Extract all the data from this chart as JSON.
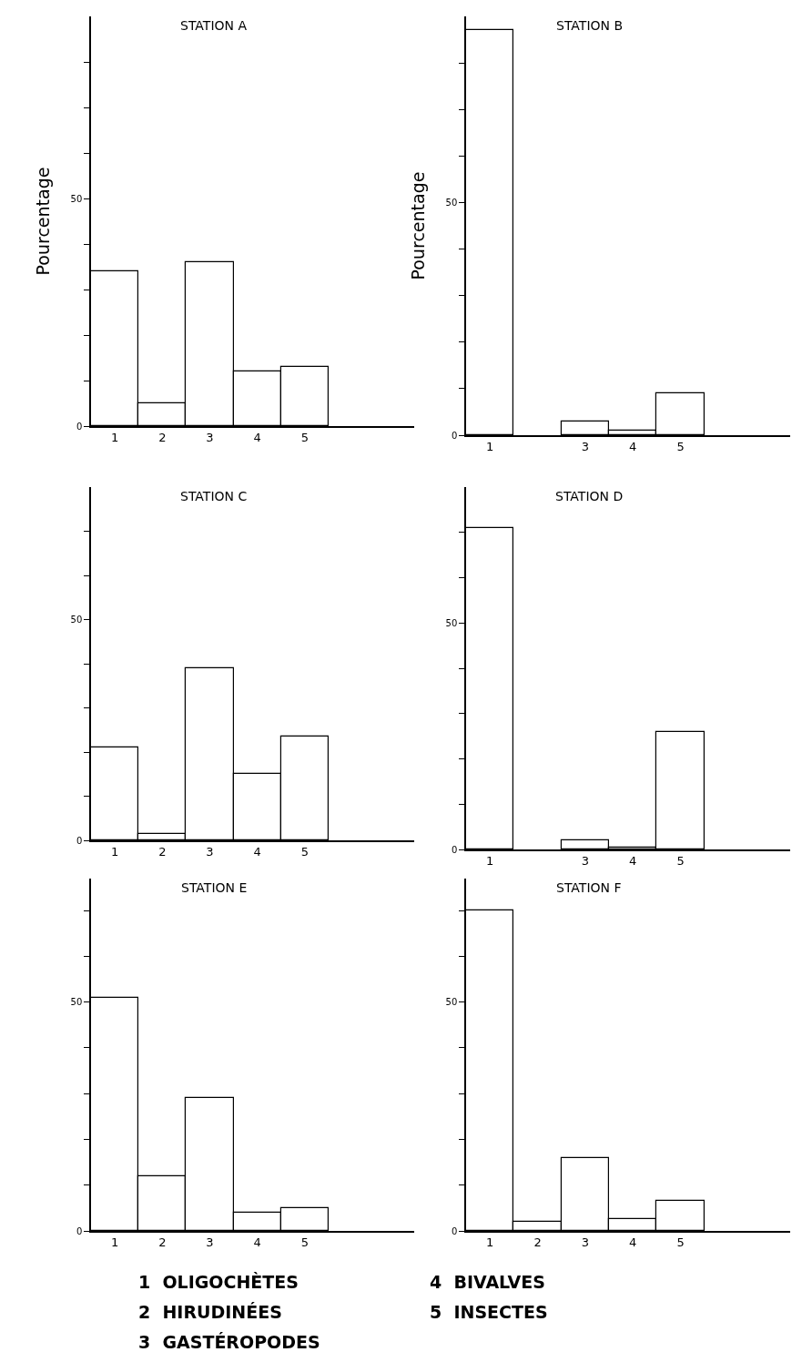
{
  "chart_data": [
    {
      "type": "bar",
      "title": "STATION A",
      "ylabel": "Pourcentage",
      "categories": [
        "1",
        "2",
        "3",
        "4",
        "5"
      ],
      "values": [
        34,
        5,
        36,
        12,
        13
      ],
      "color": "#ffffff",
      "ylim": [
        0,
        90
      ],
      "yticks": [
        0,
        {
          "value": 10,
          "label": null
        },
        {
          "value": 20,
          "label": null
        },
        {
          "value": 30,
          "label": null
        },
        {
          "value": 40,
          "label": null
        },
        50,
        {
          "value": 60,
          "label": null
        },
        {
          "value": 70,
          "label": null
        },
        {
          "value": 80,
          "label": null
        }
      ]
    },
    {
      "type": "bar",
      "title": "STATION B",
      "ylabel": "Pourcentage",
      "categories": [
        "1",
        null,
        "3",
        "4",
        "5"
      ],
      "values": [
        87,
        null,
        3,
        1,
        9
      ],
      "color": "#ffffff",
      "ylim": [
        0,
        90
      ],
      "yticks": [
        0,
        {
          "value": 10,
          "label": null
        },
        {
          "value": 20,
          "label": null
        },
        {
          "value": 30,
          "label": null
        },
        {
          "value": 40,
          "label": null
        },
        50,
        {
          "value": 60,
          "label": null
        },
        {
          "value": 70,
          "label": null
        },
        {
          "value": 80,
          "label": null
        }
      ]
    },
    {
      "type": "bar",
      "title": "STATION C",
      "categories": [
        "1",
        "2",
        "3",
        "4",
        "5"
      ],
      "values": [
        21,
        1.5,
        39,
        15,
        23.5
      ],
      "color": "#ffffff",
      "ylim": [
        0,
        80
      ],
      "yticks": [
        0,
        {
          "value": 10,
          "label": null
        },
        {
          "value": 20,
          "label": null
        },
        {
          "value": 30,
          "label": null
        },
        {
          "value": 40,
          "label": null
        },
        50,
        {
          "value": 60,
          "label": null
        },
        {
          "value": 70,
          "label": null
        }
      ]
    },
    {
      "type": "bar",
      "title": "STATION D",
      "categories": [
        "1",
        null,
        "3",
        "4",
        "5"
      ],
      "values": [
        71,
        null,
        2,
        0.5,
        26
      ],
      "color": "#ffffff",
      "ylim": [
        0,
        80
      ],
      "yticks": [
        0,
        {
          "value": 10,
          "label": null
        },
        {
          "value": 20,
          "label": null
        },
        {
          "value": 30,
          "label": null
        },
        {
          "value": 40,
          "label": null
        },
        50,
        {
          "value": 60,
          "label": null
        },
        {
          "value": 70,
          "label": null
        }
      ]
    },
    {
      "type": "bar",
      "title": "STATION E",
      "categories": [
        "1",
        "2",
        "3",
        "4",
        "5"
      ],
      "values": [
        51,
        12,
        29,
        4,
        5
      ],
      "color": "#ffffff",
      "ylim": [
        0,
        77
      ],
      "yticks": [
        0,
        {
          "value": 10,
          "label": null
        },
        {
          "value": 20,
          "label": null
        },
        {
          "value": 30,
          "label": null
        },
        {
          "value": 40,
          "label": null
        },
        50,
        {
          "value": 60,
          "label": null
        },
        {
          "value": 70,
          "label": null
        }
      ]
    },
    {
      "type": "bar",
      "title": "STATION F",
      "categories": [
        "1",
        "2",
        "3",
        "4",
        "5"
      ],
      "values": [
        70,
        2,
        16,
        2.5,
        6.5
      ],
      "color": "#ffffff",
      "ylim": [
        0,
        77
      ],
      "yticks": [
        0,
        {
          "value": 10,
          "label": null
        },
        {
          "value": 20,
          "label": null
        },
        {
          "value": 30,
          "label": null
        },
        {
          "value": 40,
          "label": null
        },
        50,
        {
          "value": 60,
          "label": null
        },
        {
          "value": 70,
          "label": null
        }
      ],
      "annotations": [
        "1  OLIGOCHÈTES",
        "2  HIRUDINÉES",
        "3  GASTÉROPODES",
        "4  BIVALVES",
        "5  INSECTES"
      ]
    }
  ]
}
